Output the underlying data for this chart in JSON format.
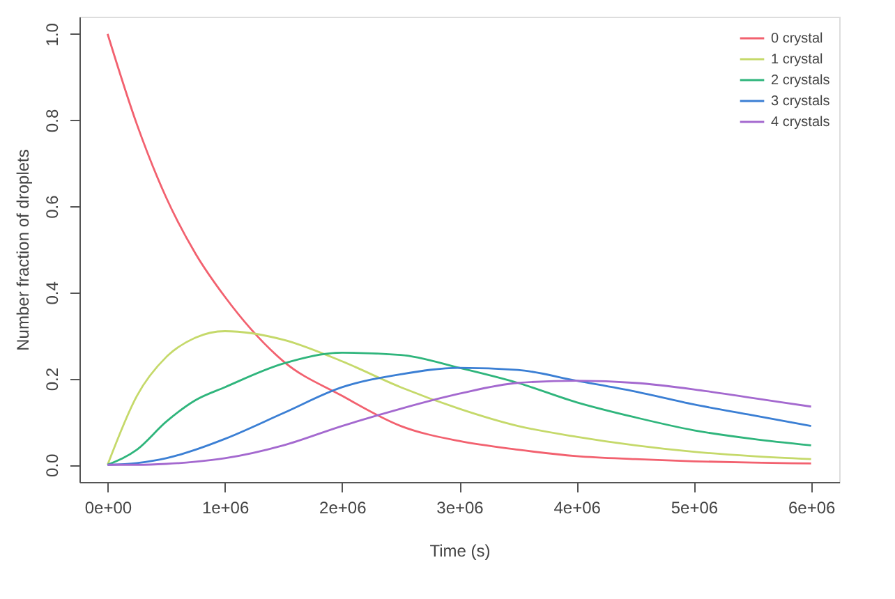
{
  "chart_data": {
    "type": "line",
    "xlabel": "Time (s)",
    "ylabel": "Number fraction of droplets",
    "x": [
      0,
      250000,
      500000,
      750000,
      1000000,
      1500000,
      2000000,
      2500000,
      3000000,
      3500000,
      4000000,
      4500000,
      5000000,
      5500000,
      6000000
    ],
    "series": [
      {
        "name": "0 crystal",
        "color": "#f2616f",
        "values": [
          1,
          0.79,
          0.62,
          0.49,
          0.39,
          0.24,
          0.16,
          0.09,
          0.055,
          0.035,
          0.02,
          0.013,
          0.008,
          0.005,
          0.003
        ]
      },
      {
        "name": "1 crystal",
        "color": "#c5d96a",
        "values": [
          0,
          0.16,
          0.25,
          0.295,
          0.31,
          0.29,
          0.24,
          0.18,
          0.13,
          0.09,
          0.065,
          0.045,
          0.03,
          0.02,
          0.013
        ]
      },
      {
        "name": "2 crystals",
        "color": "#2fb57c",
        "values": [
          0,
          0.035,
          0.1,
          0.15,
          0.18,
          0.235,
          0.26,
          0.255,
          0.225,
          0.19,
          0.145,
          0.11,
          0.08,
          0.06,
          0.045
        ]
      },
      {
        "name": "3 crystals",
        "color": "#3b7fd4",
        "values": [
          0,
          0.004,
          0.015,
          0.035,
          0.06,
          0.12,
          0.18,
          0.21,
          0.225,
          0.22,
          0.195,
          0.17,
          0.14,
          0.115,
          0.09
        ]
      },
      {
        "name": "4 crystals",
        "color": "#a469cf",
        "values": [
          0,
          0,
          0.002,
          0.007,
          0.015,
          0.045,
          0.09,
          0.13,
          0.165,
          0.19,
          0.195,
          0.19,
          0.175,
          0.155,
          0.135
        ]
      }
    ],
    "xlim": [
      -240000,
      6240000
    ],
    "xticks": [
      {
        "value": 0,
        "label": "0e+00"
      },
      {
        "value": 1000000,
        "label": "1e+06"
      },
      {
        "value": 2000000,
        "label": "2e+06"
      },
      {
        "value": 3000000,
        "label": "3e+06"
      },
      {
        "value": 4000000,
        "label": "4e+06"
      },
      {
        "value": 5000000,
        "label": "5e+06"
      },
      {
        "value": 6000000,
        "label": "6e+06"
      }
    ],
    "ylim": [
      -0.04,
      1.04
    ],
    "yticks": [
      {
        "value": 0,
        "label": "0.0"
      },
      {
        "value": 0.2,
        "label": "0.2"
      },
      {
        "value": 0.4,
        "label": "0.4"
      },
      {
        "value": 0.6,
        "label": "0.6"
      },
      {
        "value": 0.8,
        "label": "0.8"
      },
      {
        "value": 1,
        "label": "1.0"
      }
    ],
    "legend": "top right",
    "grid": false,
    "marker": "none",
    "line_style": "solid"
  }
}
